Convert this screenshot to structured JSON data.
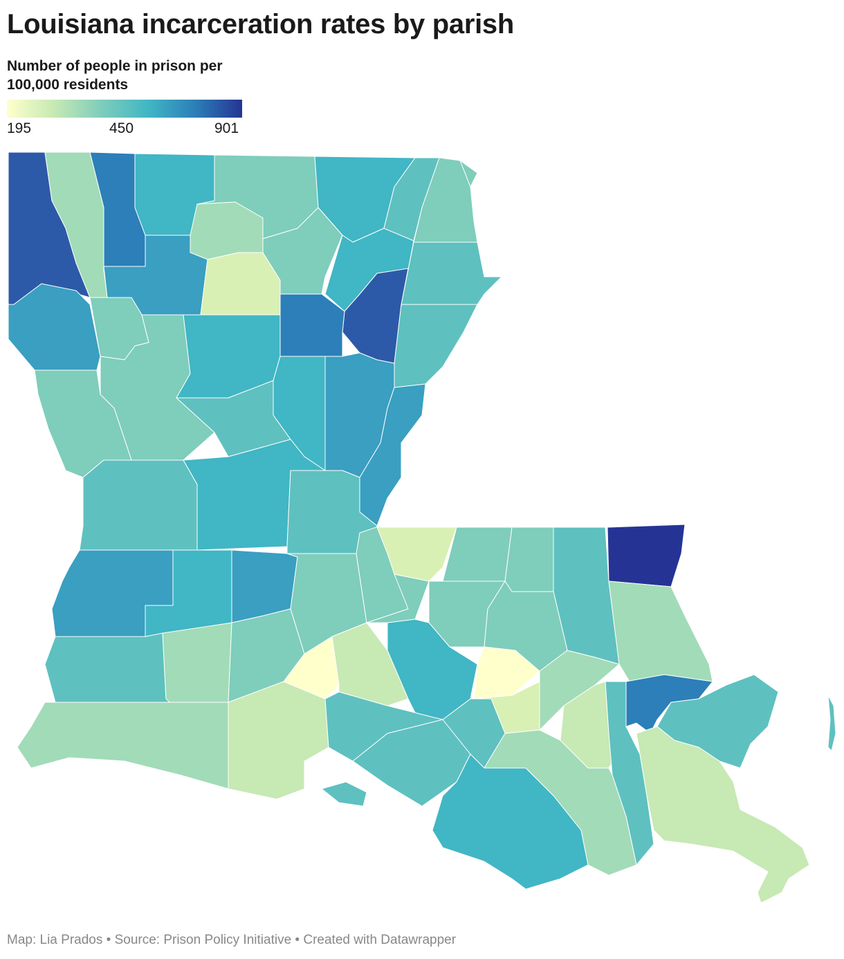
{
  "title": "Louisiana incarceration rates by parish",
  "legend": {
    "title": "Number of people in prison per 100,000 residents",
    "min_label": "195",
    "mid_label": "450",
    "max_label": "901",
    "stops": [
      "#ffffcc",
      "#c7e9b4",
      "#7fcdbb",
      "#41b6c4",
      "#2c7fb8",
      "#253494"
    ]
  },
  "footer": {
    "credit": "Map: Lia Prados",
    "separator1": " • ",
    "source": "Source: Prison Policy Initiative",
    "separator2": " • ",
    "tool": "Created with Datawrapper"
  },
  "colors": {
    "c1": "#ffffcc",
    "c2": "#d9f0b4",
    "c3": "#c7e9b4",
    "c4": "#a2dbb8",
    "c5": "#7fcdbb",
    "c6": "#5fc0c0",
    "c7": "#41b6c4",
    "c8": "#3a9fc1",
    "c9": "#2c7fb8",
    "c10": "#2c5aa8",
    "c11": "#253494"
  }
}
